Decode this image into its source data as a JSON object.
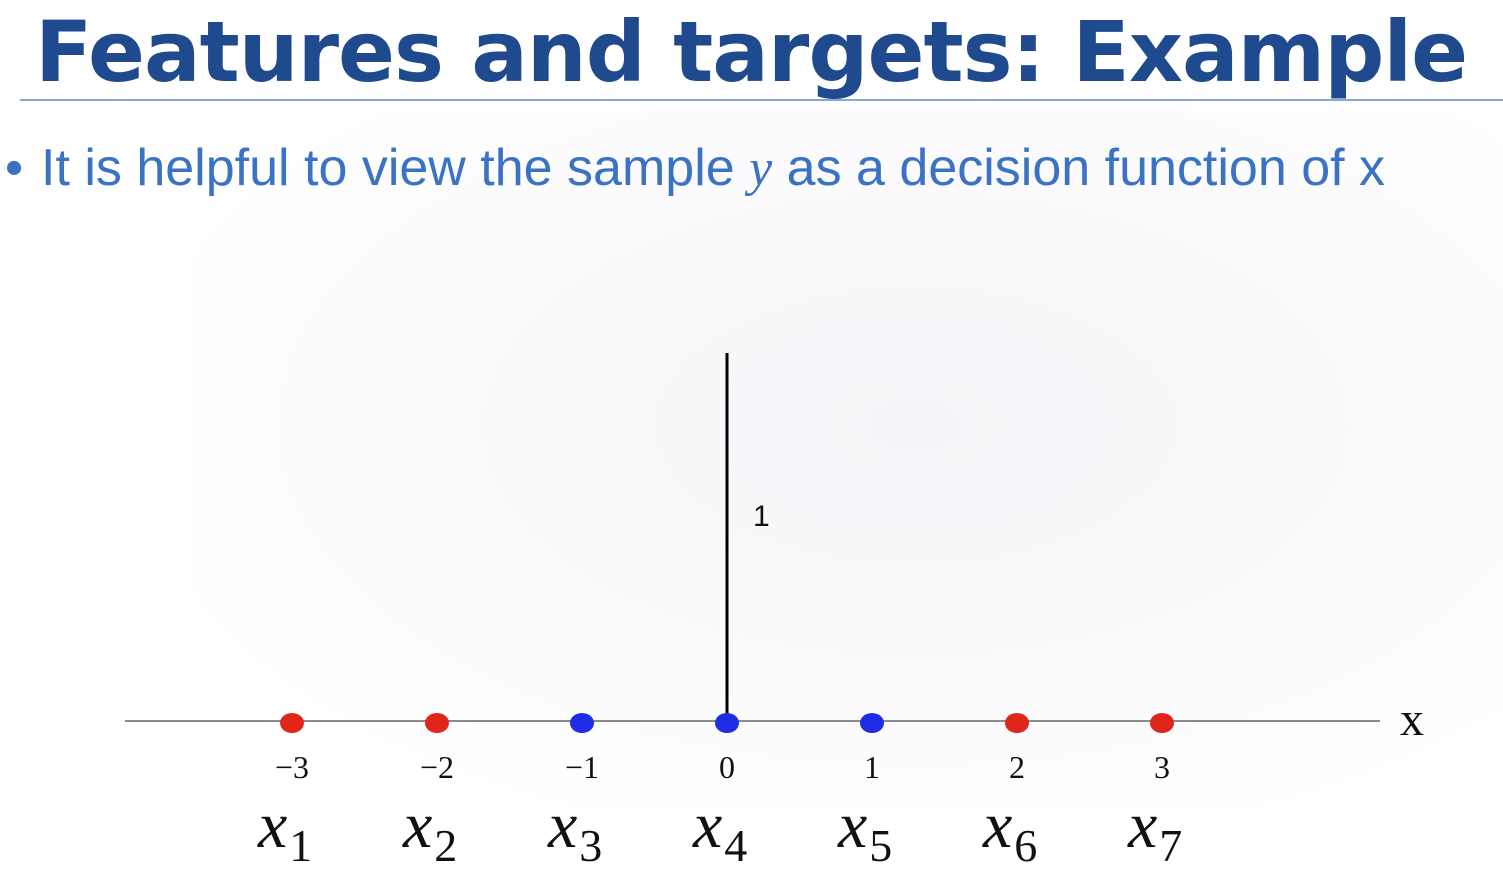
{
  "slide": {
    "title": "Features and targets: Example",
    "bullet": {
      "text_before": "It is helpful to view the sample ",
      "variable": "y",
      "text_after": " as a decision function of x"
    }
  },
  "chart_data": {
    "type": "scatter",
    "x": [
      -3,
      -2,
      -1,
      0,
      1,
      2,
      3
    ],
    "tick_labels": [
      "−3",
      "−2",
      "−1",
      "0",
      "1",
      "2",
      "3"
    ],
    "point_names": [
      "x",
      "x",
      "x",
      "x",
      "x",
      "x",
      "x"
    ],
    "point_subscripts": [
      "1",
      "2",
      "3",
      "4",
      "5",
      "6",
      "7"
    ],
    "point_colors": [
      "#e0261a",
      "#e0261a",
      "#1f2ee6",
      "#1f2ee6",
      "#1f2ee6",
      "#e0261a",
      "#e0261a"
    ],
    "xlabel": "x",
    "xlim": [
      -4.4,
      5.0
    ],
    "stem": {
      "x": 0,
      "height": 1,
      "label": "1"
    },
    "colors": {
      "red": "#e0261a",
      "blue": "#1f2ee6",
      "axis": "#8a8a8a"
    }
  }
}
